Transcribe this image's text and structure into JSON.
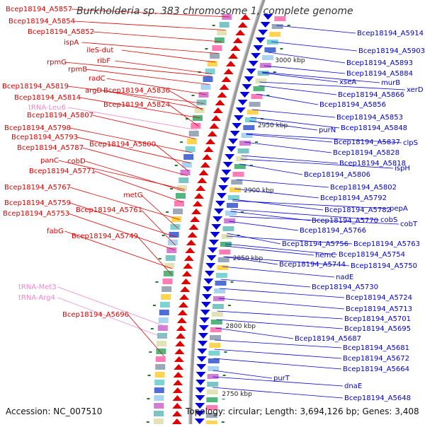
{
  "title": "Burkholderia sp. 383 chromosome 1, complete genome",
  "footer": {
    "accession": "Accession: NC_007510",
    "topology": "Topology: circular; Length: 3,694,126 bp; Genes: 3,408"
  },
  "colors": {
    "forward": "#e00000",
    "reverse": "#0000dd",
    "trna": "#ee88cc",
    "backbone": "#999999",
    "tick": "#227722"
  },
  "scale_labels": [
    "3000 kbp",
    "2950 kbp",
    "2900 kbp",
    "2850 kbp",
    "2800 kbp",
    "2750 kbp"
  ],
  "left_genes": [
    {
      "name": "Bcep18194_A5857",
      "type": "gene"
    },
    {
      "name": "Bcep18194_A5854",
      "type": "gene"
    },
    {
      "name": "Bcep18194_A5852",
      "type": "gene"
    },
    {
      "name": "ispA",
      "type": "gene"
    },
    {
      "name": "ileS-dut",
      "type": "gene"
    },
    {
      "name": "ribF",
      "type": "gene"
    },
    {
      "name": "rpmG",
      "type": "gene"
    },
    {
      "name": "rpmB",
      "type": "gene"
    },
    {
      "name": "radC",
      "type": "gene"
    },
    {
      "name": "Bcep18194_A5819",
      "type": "gene"
    },
    {
      "name": "argD",
      "type": "gene"
    },
    {
      "name": "Bcep18194_A5836",
      "type": "gene"
    },
    {
      "name": "Bcep18194_A5814",
      "type": "gene"
    },
    {
      "name": "Bcep18194_A5824",
      "type": "gene"
    },
    {
      "name": "tRNA-Leu6",
      "type": "trna"
    },
    {
      "name": "Bcep18194_A5807",
      "type": "gene"
    },
    {
      "name": "Bcep18194_A5798",
      "type": "gene"
    },
    {
      "name": "Bcep18194_A5793",
      "type": "gene"
    },
    {
      "name": "Bcep18194_A5800",
      "type": "gene"
    },
    {
      "name": "Bcep18194_A5787",
      "type": "gene"
    },
    {
      "name": "panC",
      "type": "gene"
    },
    {
      "name": "cobD",
      "type": "gene"
    },
    {
      "name": "Bcep18194_A5771",
      "type": "gene"
    },
    {
      "name": "Bcep18194_A5767",
      "type": "gene"
    },
    {
      "name": "metG",
      "type": "gene"
    },
    {
      "name": "Bcep18194_A5759",
      "type": "gene"
    },
    {
      "name": "Bcep18194_A5761",
      "type": "gene"
    },
    {
      "name": "Bcep18194_A5753",
      "type": "gene"
    },
    {
      "name": "fabG",
      "type": "gene"
    },
    {
      "name": "Bcep18194_A5749",
      "type": "gene"
    },
    {
      "name": "tRNA-Met3",
      "type": "trna"
    },
    {
      "name": "tRNA-Arg4",
      "type": "trna"
    },
    {
      "name": "Bcep18194_A5696",
      "type": "gene"
    }
  ],
  "right_genes": [
    {
      "name": "Bcep18194_A5914"
    },
    {
      "name": "Bcep18194_A5903"
    },
    {
      "name": "Bcep18194_A5893"
    },
    {
      "name": "Bcep18194_A5884"
    },
    {
      "name": "xseA"
    },
    {
      "name": "murB"
    },
    {
      "name": "xerD"
    },
    {
      "name": "Bcep18194_A5866"
    },
    {
      "name": "Bcep18194_A5856"
    },
    {
      "name": "Bcep18194_A5853"
    },
    {
      "name": "purN"
    },
    {
      "name": "Bcep18194_A5848"
    },
    {
      "name": "Bcep18194_A5837"
    },
    {
      "name": "clpS"
    },
    {
      "name": "Bcep18194_A5828"
    },
    {
      "name": "Bcep18194_A5818"
    },
    {
      "name": "ispH"
    },
    {
      "name": "Bcep18194_A5806"
    },
    {
      "name": "Bcep18194_A5802"
    },
    {
      "name": "Bcep18194_A5792"
    },
    {
      "name": "Bcep18194_A5782"
    },
    {
      "name": "pepA"
    },
    {
      "name": "Bcep18194_A5770"
    },
    {
      "name": "cobS"
    },
    {
      "name": "cobT"
    },
    {
      "name": "Bcep18194_A5766"
    },
    {
      "name": "Bcep18194_A5756"
    },
    {
      "name": "Bcep18194_A5763"
    },
    {
      "name": "hemC"
    },
    {
      "name": "Bcep18194_A5754"
    },
    {
      "name": "Bcep18194_A5744"
    },
    {
      "name": "Bcep18194_A5750"
    },
    {
      "name": "nadE"
    },
    {
      "name": "Bcep18194_A5730"
    },
    {
      "name": "Bcep18194_A5724"
    },
    {
      "name": "Bcep18194_A5713"
    },
    {
      "name": "Bcep18194_A5701"
    },
    {
      "name": "Bcep18194_A5695"
    },
    {
      "name": "Bcep18194_A5687"
    },
    {
      "name": "Bcep18194_A5681"
    },
    {
      "name": "Bcep18194_A5672"
    },
    {
      "name": "Bcep18194_A5664"
    },
    {
      "name": "purT"
    },
    {
      "name": "dnaE"
    },
    {
      "name": "Bcep18194_A5648"
    }
  ]
}
